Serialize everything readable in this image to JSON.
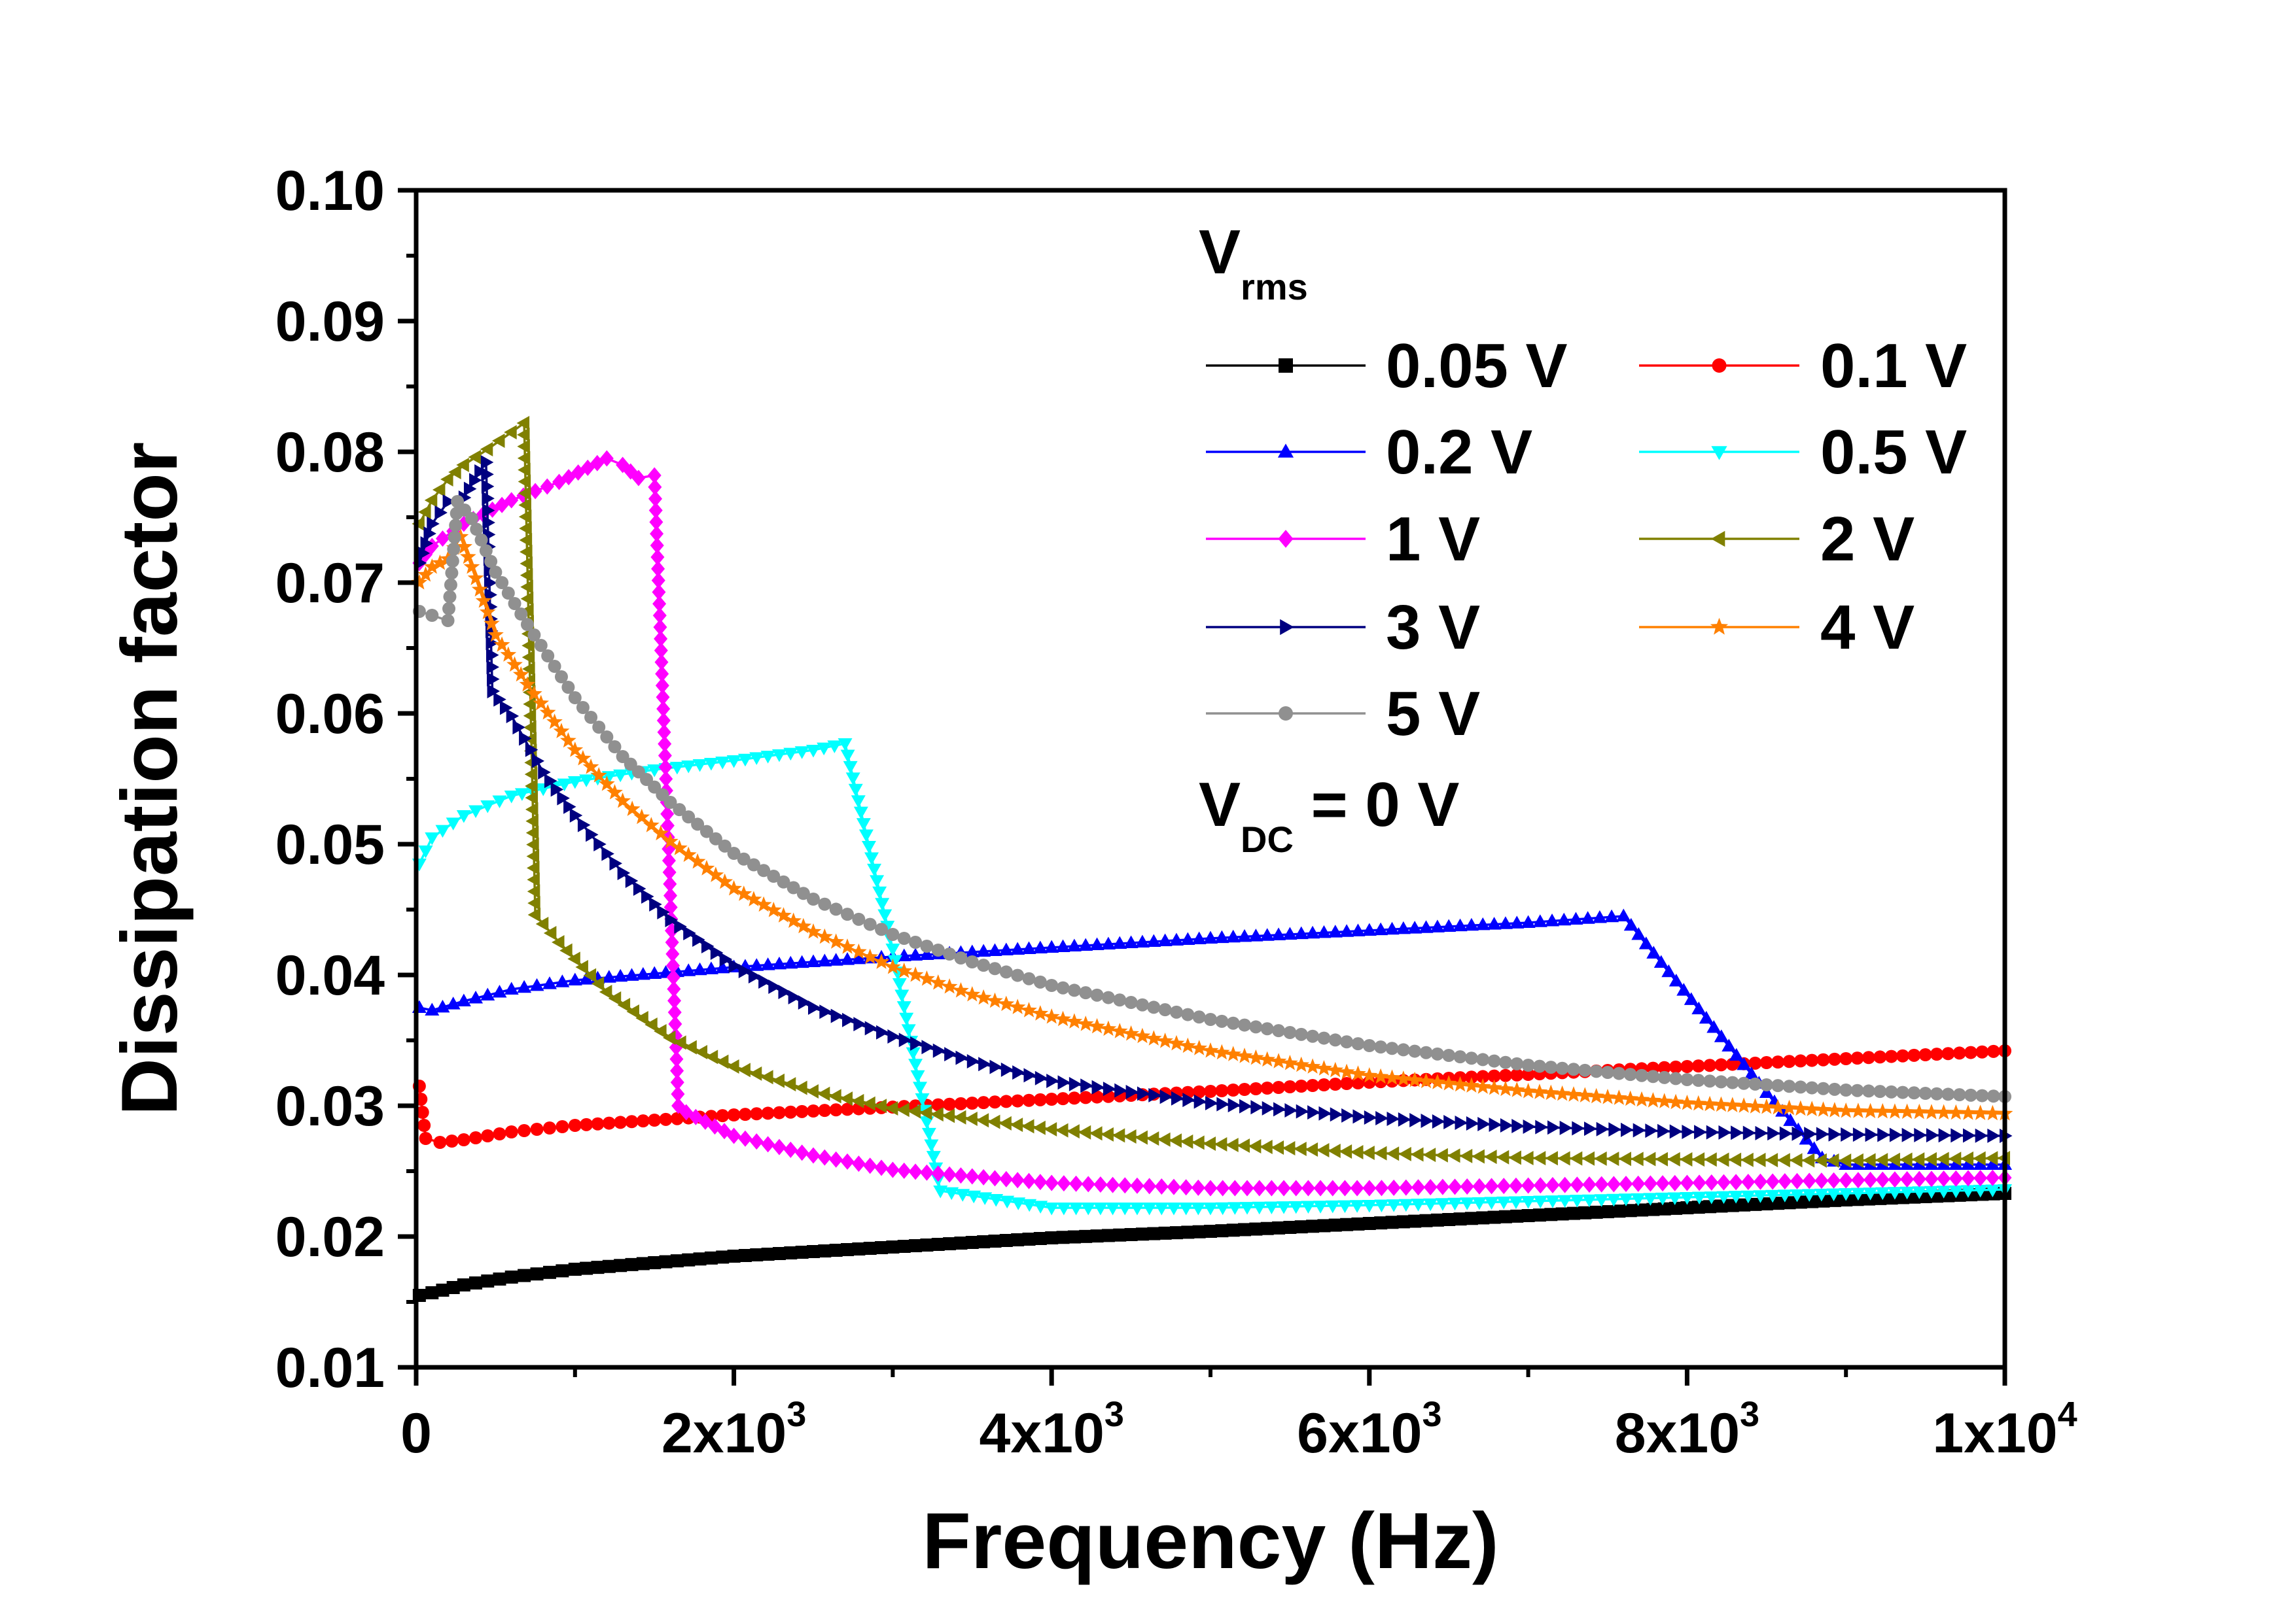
{
  "chart_data": {
    "type": "line",
    "xlabel": "Frequency (Hz)",
    "ylabel": "Dissipation factor",
    "xlim": [
      0,
      10000
    ],
    "ylim": [
      0.01,
      0.1
    ],
    "x_ticks": [
      {
        "value": 0,
        "base": "0",
        "exp": ""
      },
      {
        "value": 2000,
        "base": "2x10",
        "exp": "3"
      },
      {
        "value": 4000,
        "base": "4x10",
        "exp": "3"
      },
      {
        "value": 6000,
        "base": "6x10",
        "exp": "3"
      },
      {
        "value": 8000,
        "base": "8x10",
        "exp": "3"
      },
      {
        "value": 10000,
        "base": "1x10",
        "exp": "4"
      }
    ],
    "y_ticks": [
      {
        "value": 0.01,
        "label": "0.01"
      },
      {
        "value": 0.02,
        "label": "0.02"
      },
      {
        "value": 0.03,
        "label": "0.03"
      },
      {
        "value": 0.04,
        "label": "0.04"
      },
      {
        "value": 0.05,
        "label": "0.05"
      },
      {
        "value": 0.06,
        "label": "0.06"
      },
      {
        "value": 0.07,
        "label": "0.07"
      },
      {
        "value": 0.08,
        "label": "0.08"
      },
      {
        "value": 0.09,
        "label": "0.09"
      },
      {
        "value": 0.1,
        "label": "0.10"
      }
    ],
    "grid": false,
    "legend": {
      "placement": "top-right",
      "header_main": "V",
      "header_sub": "rms",
      "footer_main": "V",
      "footer_sub": "DC",
      "footer_rest": " = 0 V"
    },
    "series": [
      {
        "name": "0.05 V",
        "color": "#000000",
        "marker": "square",
        "points": [
          [
            20,
            0.0155
          ],
          [
            100,
            0.0157
          ],
          [
            300,
            0.0163
          ],
          [
            600,
            0.0169
          ],
          [
            1000,
            0.0175
          ],
          [
            1500,
            0.018
          ],
          [
            2000,
            0.0185
          ],
          [
            3000,
            0.0192
          ],
          [
            4000,
            0.0199
          ],
          [
            5000,
            0.0204
          ],
          [
            6000,
            0.021
          ],
          [
            7000,
            0.0216
          ],
          [
            8000,
            0.0222
          ],
          [
            9000,
            0.0228
          ],
          [
            10000,
            0.0233
          ]
        ]
      },
      {
        "name": "0.1 V",
        "color": "#ff0000",
        "marker": "circle",
        "points": [
          [
            20,
            0.0315
          ],
          [
            60,
            0.0275
          ],
          [
            150,
            0.0272
          ],
          [
            300,
            0.0274
          ],
          [
            600,
            0.028
          ],
          [
            1000,
            0.0285
          ],
          [
            1500,
            0.0289
          ],
          [
            2000,
            0.0293
          ],
          [
            3000,
            0.0299
          ],
          [
            4000,
            0.0305
          ],
          [
            5000,
            0.0311
          ],
          [
            6000,
            0.0318
          ],
          [
            7000,
            0.0324
          ],
          [
            8000,
            0.033
          ],
          [
            9000,
            0.0336
          ],
          [
            10000,
            0.0342
          ]
        ]
      },
      {
        "name": "0.2 V",
        "color": "#0000ff",
        "marker": "triangle-up",
        "points": [
          [
            20,
            0.0375
          ],
          [
            100,
            0.0373
          ],
          [
            300,
            0.038
          ],
          [
            600,
            0.0389
          ],
          [
            1000,
            0.0396
          ],
          [
            1500,
            0.0401
          ],
          [
            2000,
            0.0406
          ],
          [
            3000,
            0.0414
          ],
          [
            4000,
            0.0421
          ],
          [
            5000,
            0.0428
          ],
          [
            6000,
            0.0434
          ],
          [
            7000,
            0.044
          ],
          [
            7600,
            0.0445
          ],
          [
            8500,
            0.031
          ],
          [
            8850,
            0.026
          ],
          [
            9000,
            0.0255
          ],
          [
            10000,
            0.0255
          ]
        ]
      },
      {
        "name": "0.5 V",
        "color": "#00ffff",
        "marker": "triangle-down",
        "points": [
          [
            20,
            0.0485
          ],
          [
            100,
            0.0505
          ],
          [
            300,
            0.0522
          ],
          [
            600,
            0.0537
          ],
          [
            1000,
            0.0548
          ],
          [
            1500,
            0.0557
          ],
          [
            2000,
            0.0564
          ],
          [
            2500,
            0.0572
          ],
          [
            2700,
            0.0577
          ],
          [
            3000,
            0.042
          ],
          [
            3300,
            0.0235
          ],
          [
            4000,
            0.0222
          ],
          [
            5000,
            0.0222
          ],
          [
            6000,
            0.0224
          ],
          [
            7000,
            0.0227
          ],
          [
            8000,
            0.023
          ],
          [
            9000,
            0.0233
          ],
          [
            10000,
            0.0236
          ]
        ]
      },
      {
        "name": "1 V",
        "color": "#ff00ff",
        "marker": "diamond",
        "points": [
          [
            20,
            0.0715
          ],
          [
            100,
            0.0728
          ],
          [
            300,
            0.0745
          ],
          [
            600,
            0.0763
          ],
          [
            900,
            0.0777
          ],
          [
            1200,
            0.0795
          ],
          [
            1300,
            0.079
          ],
          [
            1400,
            0.078
          ],
          [
            1500,
            0.0782
          ],
          [
            1650,
            0.03
          ],
          [
            1700,
            0.0295
          ],
          [
            2000,
            0.0277
          ],
          [
            2500,
            0.0262
          ],
          [
            3000,
            0.0251
          ],
          [
            4000,
            0.0241
          ],
          [
            5000,
            0.0237
          ],
          [
            6000,
            0.0237
          ],
          [
            7000,
            0.0239
          ],
          [
            8000,
            0.0241
          ],
          [
            9000,
            0.0243
          ],
          [
            10000,
            0.0245
          ]
        ]
      },
      {
        "name": "2 V",
        "color": "#808000",
        "marker": "triangle-left",
        "points": [
          [
            20,
            0.0745
          ],
          [
            100,
            0.0763
          ],
          [
            200,
            0.0779
          ],
          [
            300,
            0.079
          ],
          [
            450,
            0.0802
          ],
          [
            600,
            0.0815
          ],
          [
            680,
            0.0822
          ],
          [
            750,
            0.0446
          ],
          [
            900,
            0.0425
          ],
          [
            1200,
            0.0387
          ],
          [
            1600,
            0.0352
          ],
          [
            2000,
            0.033
          ],
          [
            2500,
            0.0311
          ],
          [
            3000,
            0.0298
          ],
          [
            4000,
            0.0282
          ],
          [
            5000,
            0.0271
          ],
          [
            6000,
            0.0264
          ],
          [
            7000,
            0.026
          ],
          [
            8000,
            0.0259
          ],
          [
            9000,
            0.0258
          ],
          [
            10000,
            0.026
          ]
        ]
      },
      {
        "name": "3 V",
        "color": "#000080",
        "marker": "triangle-right",
        "points": [
          [
            20,
            0.0715
          ],
          [
            100,
            0.0745
          ],
          [
            200,
            0.0762
          ],
          [
            300,
            0.0765
          ],
          [
            400,
            0.0785
          ],
          [
            440,
            0.0792
          ],
          [
            480,
            0.0617
          ],
          [
            600,
            0.0598
          ],
          [
            800,
            0.0555
          ],
          [
            1000,
            0.0522
          ],
          [
            1300,
            0.0478
          ],
          [
            1600,
            0.0442
          ],
          [
            2000,
            0.0407
          ],
          [
            2500,
            0.0375
          ],
          [
            3000,
            0.0353
          ],
          [
            3500,
            0.0334
          ],
          [
            4000,
            0.0319
          ],
          [
            5000,
            0.0302
          ],
          [
            6000,
            0.0291
          ],
          [
            7000,
            0.0284
          ],
          [
            8000,
            0.028
          ],
          [
            9000,
            0.0278
          ],
          [
            10000,
            0.0277
          ]
        ]
      },
      {
        "name": "4 V",
        "color": "#ff8000",
        "marker": "star",
        "points": [
          [
            20,
            0.07
          ],
          [
            100,
            0.0712
          ],
          [
            200,
            0.0718
          ],
          [
            280,
            0.0735
          ],
          [
            350,
            0.0712
          ],
          [
            500,
            0.066
          ],
          [
            700,
            0.0622
          ],
          [
            1000,
            0.0572
          ],
          [
            1300,
            0.0533
          ],
          [
            1600,
            0.0502
          ],
          [
            2000,
            0.0466
          ],
          [
            2500,
            0.0433
          ],
          [
            3000,
            0.0406
          ],
          [
            3500,
            0.0385
          ],
          [
            4000,
            0.0368
          ],
          [
            5000,
            0.0342
          ],
          [
            6000,
            0.0323
          ],
          [
            7000,
            0.0311
          ],
          [
            8000,
            0.0302
          ],
          [
            9000,
            0.0296
          ],
          [
            10000,
            0.0294
          ]
        ]
      },
      {
        "name": "5 V",
        "color": "#909090",
        "marker": "circle",
        "points": [
          [
            20,
            0.0678
          ],
          [
            100,
            0.0675
          ],
          [
            200,
            0.0671
          ],
          [
            260,
            0.0762
          ],
          [
            350,
            0.0749
          ],
          [
            500,
            0.0708
          ],
          [
            700,
            0.0668
          ],
          [
            1000,
            0.0612
          ],
          [
            1300,
            0.0567
          ],
          [
            1600,
            0.0532
          ],
          [
            2000,
            0.0493
          ],
          [
            2500,
            0.0458
          ],
          [
            3000,
            0.0431
          ],
          [
            3500,
            0.041
          ],
          [
            4000,
            0.0392
          ],
          [
            5000,
            0.0366
          ],
          [
            6000,
            0.0346
          ],
          [
            7000,
            0.0331
          ],
          [
            8000,
            0.032
          ],
          [
            9000,
            0.0312
          ],
          [
            10000,
            0.0307
          ]
        ]
      }
    ]
  }
}
